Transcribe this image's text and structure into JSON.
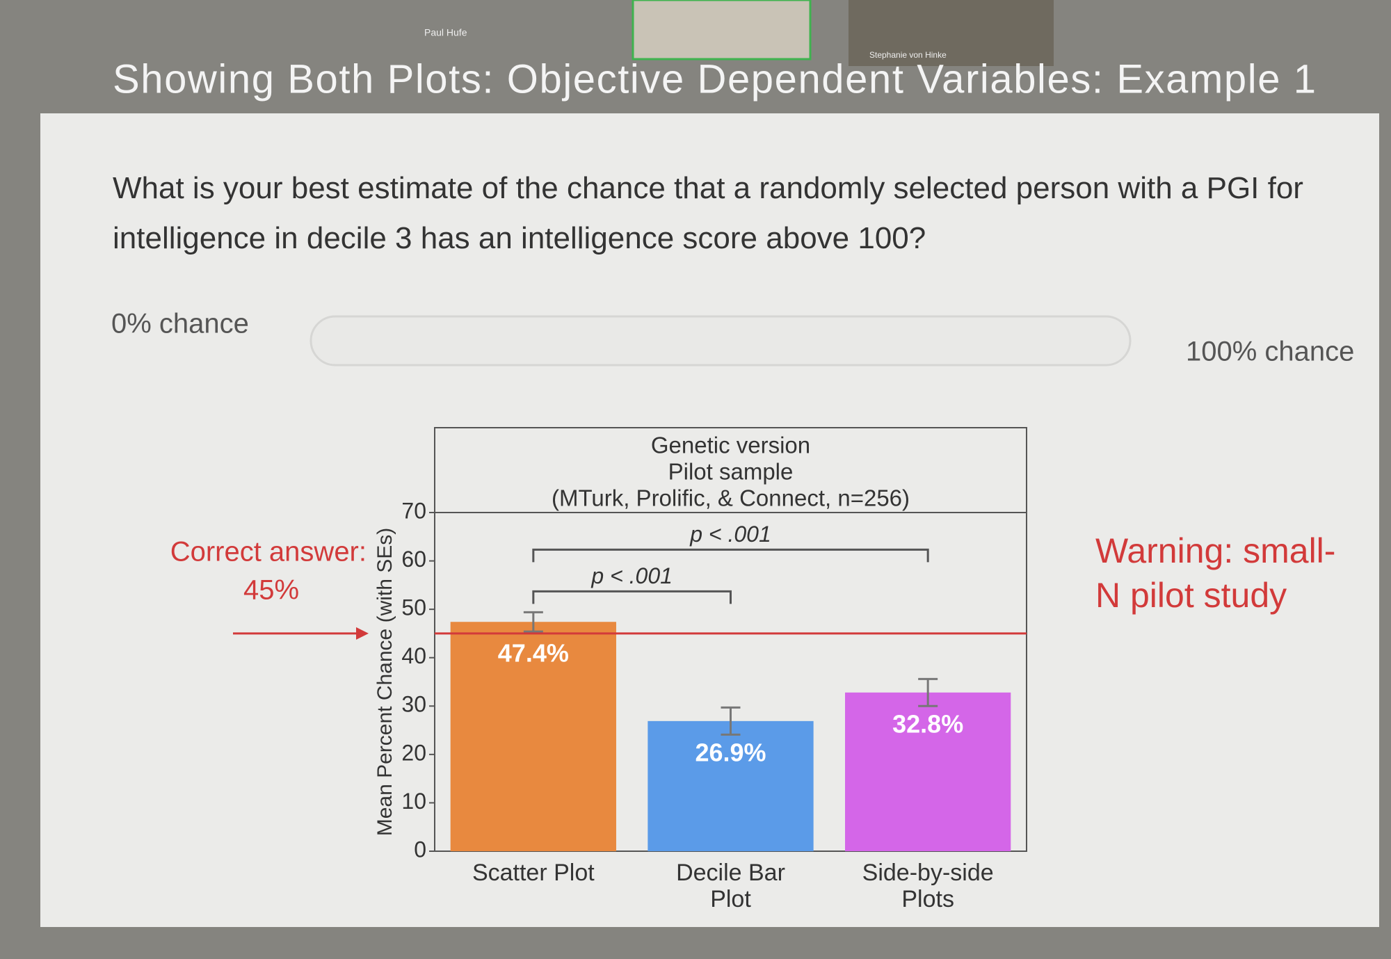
{
  "header": {
    "presenter": "Paul Hufe",
    "participant": "Stephanie von Hinke"
  },
  "slide": {
    "title": "Showing Both Plots: Objective Dependent Variables: Example 1",
    "question": "What is your best estimate of the chance that a randomly selected person with a PGI for intelligence in decile 3 has an intelligence score above 100?",
    "slider": {
      "min_label": "0% chance",
      "max_label": "100% chance"
    },
    "warning": "Warning: small-N pilot study"
  },
  "chart_data": {
    "type": "bar",
    "panel_title": [
      "Genetic version",
      "Pilot sample",
      "(MTurk, Prolific, & Connect, n=256)"
    ],
    "ylabel": "Mean Percent Chance (with SEs)",
    "categories": [
      "Scatter Plot",
      "Decile Bar Plot",
      "Side-by-side Plots"
    ],
    "values": [
      47.4,
      26.9,
      32.8
    ],
    "value_labels": [
      "47.4%",
      "26.9%",
      "32.8%"
    ],
    "errors": [
      2,
      2.8,
      2.8
    ],
    "colors": [
      "#e8893f",
      "#5b9be8",
      "#d466e8"
    ],
    "ylim": [
      0,
      70
    ],
    "yticks": [
      0,
      10,
      20,
      30,
      40,
      50,
      60,
      70
    ],
    "reference": {
      "value": 45,
      "label": "45%",
      "text": "Correct answer:",
      "color": "#d23a3a"
    },
    "brackets": [
      {
        "from": 0,
        "to": 1,
        "label": "p < .001"
      },
      {
        "from": 0,
        "to": 2,
        "label": "p < .001"
      }
    ]
  }
}
